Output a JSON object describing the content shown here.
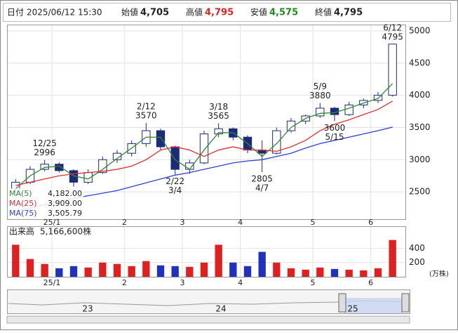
{
  "header": {
    "date_label": "日付",
    "date": "2025/06/12 15:30",
    "open_label": "始値",
    "open": "4,705",
    "high_label": "高値",
    "high": "4,795",
    "low_label": "安値",
    "low": "4,575",
    "close_label": "終値",
    "close": "4,795"
  },
  "chart_data": [
    {
      "type": "candlestick",
      "categories": [
        null,
        null,
        null,
        "25/1",
        null,
        null,
        null,
        null,
        "2",
        null,
        null,
        null,
        "3",
        null,
        null,
        null,
        "4",
        null,
        null,
        null,
        null,
        "5",
        null,
        null,
        null,
        "6",
        null
      ],
      "open": [
        2550,
        2650,
        2850,
        2930,
        2830,
        2650,
        2800,
        3000,
        3100,
        3250,
        3450,
        3200,
        2850,
        2950,
        3400,
        3480,
        3350,
        3150,
        3100,
        3450,
        3600,
        3680,
        3800,
        3700,
        3850,
        3920,
        4000
      ],
      "high": [
        2700,
        2900,
        2996,
        2960,
        2850,
        2850,
        3050,
        3150,
        3300,
        3570,
        3480,
        3220,
        3000,
        3450,
        3565,
        3500,
        3380,
        3300,
        3500,
        3650,
        3700,
        3880,
        3820,
        3900,
        3950,
        4050,
        4795
      ],
      "low": [
        2500,
        2620,
        2820,
        2800,
        2580,
        2620,
        2780,
        2950,
        3050,
        3200,
        3150,
        2770,
        2780,
        2930,
        3350,
        3300,
        3100,
        2805,
        3080,
        3420,
        3550,
        3650,
        3600,
        3680,
        3800,
        3880,
        3980
      ],
      "close": [
        2650,
        2850,
        2930,
        2830,
        2650,
        2800,
        3000,
        3100,
        3250,
        3450,
        3200,
        2850,
        2950,
        3400,
        3480,
        3350,
        3150,
        3100,
        3450,
        3600,
        3680,
        3800,
        3700,
        3850,
        3920,
        4000,
        4795
      ],
      "up_color": "#ffffff",
      "down_color": "#1c2a7a",
      "edge_color": "#1c2a7a",
      "series": [
        {
          "name": "MA(5)",
          "color": "#2e8b2e",
          "legend_value": "4,182.00",
          "values": [
            2550,
            2750,
            2880,
            2900,
            2750,
            2700,
            2850,
            3020,
            3180,
            3350,
            3350,
            3000,
            2850,
            3150,
            3420,
            3420,
            3250,
            3050,
            3250,
            3500,
            3640,
            3720,
            3730,
            3800,
            3880,
            3950,
            4182
          ]
        },
        {
          "name": "MA(25)",
          "color": "#e03030",
          "legend_value": "3,909.00",
          "values": [
            2600,
            2650,
            2700,
            2750,
            2780,
            2800,
            2820,
            2850,
            2900,
            3000,
            3150,
            3200,
            3150,
            3050,
            3150,
            3200,
            3150,
            3150,
            3130,
            3200,
            3300,
            3450,
            3550,
            3620,
            3700,
            3780,
            3909
          ]
        },
        {
          "name": "MA(75)",
          "color": "#2f3fd8",
          "legend_value": "3,505.79",
          "values": [
            2200,
            2250,
            2300,
            2350,
            2400,
            2440,
            2480,
            2520,
            2580,
            2640,
            2700,
            2760,
            2800,
            2850,
            2900,
            2950,
            2980,
            3000,
            3050,
            3100,
            3180,
            3250,
            3300,
            3350,
            3400,
            3450,
            3505.79
          ]
        }
      ],
      "annotations": [
        [
          "12/25",
          "2996"
        ],
        [
          "2/12",
          "3570"
        ],
        [
          "2/22",
          "3/4"
        ],
        [
          "3/18",
          "3565"
        ],
        [
          "2805",
          "4/7"
        ],
        [
          "5/9",
          "3880"
        ],
        [
          "3600",
          "5/15"
        ],
        [
          "6/12",
          "4795"
        ]
      ],
      "ylim": [
        2076,
        5087
      ],
      "yticks": [
        2500,
        3000,
        3500,
        4000,
        4500,
        5000
      ],
      "grid": true
    },
    {
      "type": "bar",
      "title": "出来高",
      "title_value": "5,166,600株",
      "unit": "(万株)",
      "up_color": "#e02020",
      "down_color": "#2030c0",
      "values": [
        450,
        250,
        180,
        120,
        150,
        130,
        200,
        180,
        150,
        220,
        160,
        150,
        140,
        200,
        450,
        200,
        150,
        350,
        200,
        120,
        100,
        130,
        110,
        100,
        90,
        120,
        516.66
      ],
      "ylim": [
        0,
        700
      ],
      "yticks": [
        200,
        400
      ],
      "grid": true
    }
  ],
  "navigator": {
    "labels": [
      "23",
      "24",
      "25"
    ]
  }
}
